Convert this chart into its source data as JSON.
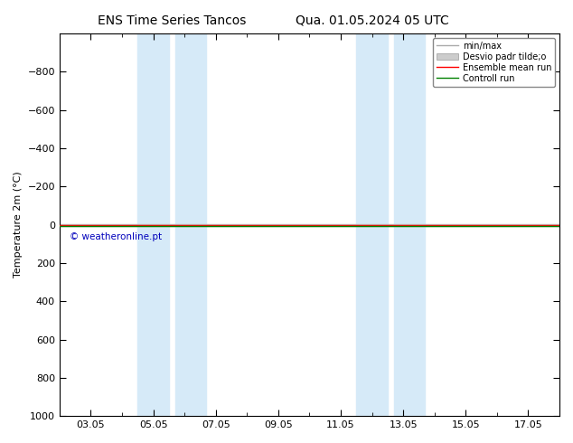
{
  "title_left": "ENS Time Series Tancos",
  "title_right": "Qua. 01.05.2024 05 UTC",
  "ylabel": "Temperature 2m (°C)",
  "ylim_bottom": 1000,
  "ylim_top": -1000,
  "yticks": [
    -800,
    -600,
    -400,
    -200,
    0,
    200,
    400,
    600,
    800,
    1000
  ],
  "xtick_labels": [
    "03.05",
    "05.05",
    "07.05",
    "09.05",
    "11.05",
    "13.05",
    "15.05",
    "17.05"
  ],
  "xtick_positions": [
    2,
    4,
    6,
    8,
    10,
    12,
    14,
    16
  ],
  "xlim": [
    1,
    17
  ],
  "shaded_regions": [
    {
      "xstart": 3.5,
      "xend": 4.5,
      "color": "#d6eaf8"
    },
    {
      "xstart": 4.7,
      "xend": 5.7,
      "color": "#d6eaf8"
    },
    {
      "xstart": 10.5,
      "xend": 11.5,
      "color": "#d6eaf8"
    },
    {
      "xstart": 11.7,
      "xend": 12.7,
      "color": "#d6eaf8"
    }
  ],
  "green_line_color": "#008000",
  "red_line_color": "#ff0000",
  "watermark_text": "© weatheronline.pt",
  "watermark_color": "#0000bb",
  "legend_labels": [
    "min/max",
    "Desvio padr tilde;o",
    "Ensemble mean run",
    "Controll run"
  ],
  "background_color": "#ffffff",
  "title_fontsize": 10,
  "axis_fontsize": 8,
  "tick_fontsize": 8
}
